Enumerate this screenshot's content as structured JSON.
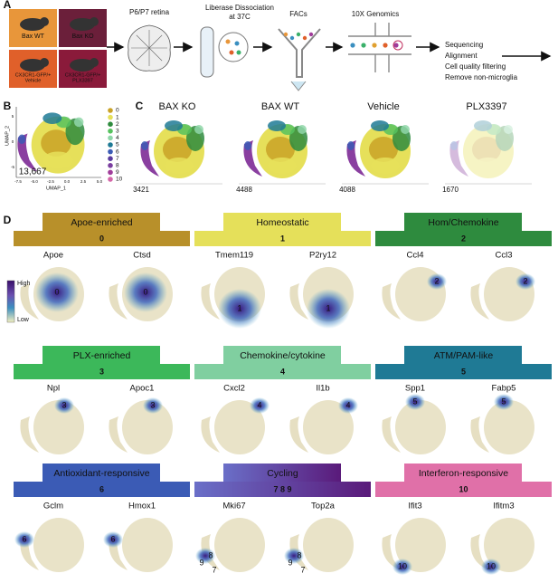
{
  "panel_labels": [
    "A",
    "B",
    "C",
    "D"
  ],
  "workflow": {
    "mice": [
      {
        "lines": [
          "Bax WT"
        ],
        "color": "#e8963a"
      },
      {
        "lines": [
          "Bax KO"
        ],
        "color": "#6b1f3a"
      },
      {
        "lines": [
          "CX3CR1-GFP/+",
          "Vehicle"
        ],
        "color": "#e0602a"
      },
      {
        "lines": [
          "CX3CR1-GFP/+",
          "PLX3397"
        ],
        "color": "#8a1a3a"
      }
    ],
    "steps": [
      [
        "P6/P7 retina"
      ],
      [
        "Liberase Dissociation",
        "at 37C"
      ],
      [
        "FACs"
      ],
      [
        "10X Genomics"
      ]
    ],
    "final": [
      "Sequencing",
      "Alignment",
      "Cell quality filtering",
      "Remove non-microglia"
    ]
  },
  "umap_all": {
    "x_label": "UMAP_1",
    "y_label": "UMAP_2",
    "xticks": [
      "-7.5",
      "-5.0",
      "-2.5",
      "0.0",
      "2.5",
      "5.0"
    ],
    "yticks": [
      "-5",
      "0",
      "5"
    ],
    "cell_count": "13,667",
    "clusters": [
      "0",
      "1",
      "2",
      "3",
      "4",
      "5",
      "6",
      "7",
      "8",
      "9",
      "10"
    ],
    "colors": [
      "#c9a227",
      "#e6e05a",
      "#2e8b3e",
      "#56c25e",
      "#8fd6a8",
      "#1f7a95",
      "#3b5bb5",
      "#5a3c9e",
      "#7b3fa0",
      "#a03c9a",
      "#d466a8"
    ]
  },
  "conditions": [
    {
      "name": "BAX KO",
      "cells": 3421
    },
    {
      "name": "BAX WT",
      "cells": 4488
    },
    {
      "name": "Vehicle",
      "cells": 4088
    },
    {
      "name": "PLX3397",
      "cells": 1670
    }
  ],
  "scale": {
    "high": "High",
    "low": "Low"
  },
  "clusters": [
    {
      "name": "Apoe-enriched",
      "id": "0",
      "color": "#b8902a",
      "genes": [
        "Apoe",
        "Ctsd"
      ],
      "plot_labels": [
        "0"
      ]
    },
    {
      "name": "Homeostatic",
      "id": "1",
      "color": "#e5e05a",
      "genes": [
        "Tmem119",
        "P2ry12"
      ],
      "plot_labels": [
        "1"
      ]
    },
    {
      "name": "Hom/Chemokine",
      "id": "2",
      "color": "#2e8b3e",
      "genes": [
        "Ccl4",
        "Ccl3"
      ],
      "plot_labels": [
        "2"
      ]
    },
    {
      "name": "PLX-enriched",
      "id": "3",
      "color": "#3cb85a",
      "genes": [
        "Npl",
        "Apoc1"
      ],
      "plot_labels": [
        "3"
      ]
    },
    {
      "name": "Chemokine/cytokine",
      "id": "4",
      "color": "#80cfa0",
      "genes": [
        "Cxcl2",
        "Il1b"
      ],
      "plot_labels": [
        "4"
      ]
    },
    {
      "name": "ATM/PAM-like",
      "id": "5",
      "color": "#1f7a95",
      "genes": [
        "Spp1",
        "Fabp5"
      ],
      "plot_labels": [
        "5"
      ]
    },
    {
      "name": "Antioxidant-responsive",
      "id": "6",
      "color": "#3b5bb5",
      "genes": [
        "Gclm",
        "Hmox1"
      ],
      "plot_labels": [
        "6"
      ]
    },
    {
      "name": "Cycling",
      "id": "7 8 9",
      "color": "#7b3fa0",
      "genes": [
        "Mki67",
        "Top2a"
      ],
      "plot_labels": [
        "8",
        "9",
        "7"
      ]
    },
    {
      "name": "Interferon-responsive",
      "id": "10",
      "color": "#e070a8",
      "genes": [
        "Ifit3",
        "Ifitm3"
      ],
      "plot_labels": [
        "10"
      ]
    }
  ]
}
